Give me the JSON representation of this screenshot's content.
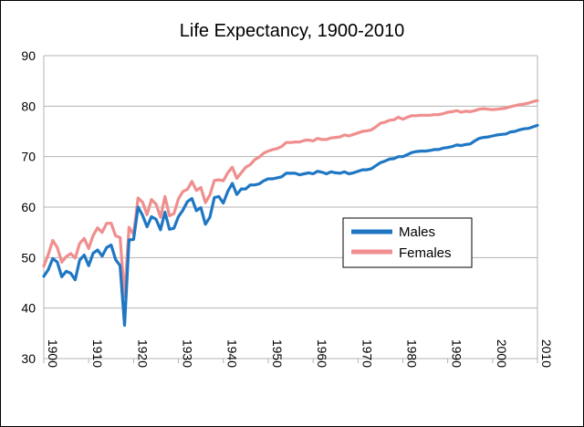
{
  "chart_data": {
    "type": "line",
    "title": "Life Expectancy, 1900-2010",
    "xlabel": "",
    "ylabel": "",
    "xlim": [
      1900,
      2010
    ],
    "ylim": [
      30,
      90
    ],
    "x_ticks": [
      1900,
      1910,
      1920,
      1930,
      1940,
      1950,
      1960,
      1970,
      1980,
      1990,
      2000,
      2010
    ],
    "y_ticks": [
      30,
      40,
      50,
      60,
      70,
      80,
      90
    ],
    "grid": "horizontal",
    "legend_position": "right-middle",
    "series": [
      {
        "name": "Males",
        "color": "#1f77c4",
        "points": [
          [
            1900,
            46.3
          ],
          [
            1901,
            47.6
          ],
          [
            1902,
            49.8
          ],
          [
            1903,
            49.1
          ],
          [
            1904,
            46.2
          ],
          [
            1905,
            47.3
          ],
          [
            1906,
            46.9
          ],
          [
            1907,
            45.6
          ],
          [
            1908,
            49.5
          ],
          [
            1909,
            50.5
          ],
          [
            1910,
            48.4
          ],
          [
            1911,
            50.9
          ],
          [
            1912,
            51.5
          ],
          [
            1913,
            50.3
          ],
          [
            1914,
            52.0
          ],
          [
            1915,
            52.5
          ],
          [
            1916,
            49.6
          ],
          [
            1917,
            48.4
          ],
          [
            1918,
            36.6
          ],
          [
            1919,
            53.5
          ],
          [
            1920,
            53.6
          ],
          [
            1921,
            60.0
          ],
          [
            1922,
            58.4
          ],
          [
            1923,
            56.1
          ],
          [
            1924,
            58.1
          ],
          [
            1925,
            57.6
          ],
          [
            1926,
            55.5
          ],
          [
            1927,
            59.0
          ],
          [
            1928,
            55.6
          ],
          [
            1929,
            55.8
          ],
          [
            1930,
            58.1
          ],
          [
            1931,
            59.4
          ],
          [
            1932,
            61.1
          ],
          [
            1933,
            61.7
          ],
          [
            1934,
            59.3
          ],
          [
            1935,
            59.9
          ],
          [
            1936,
            56.6
          ],
          [
            1937,
            58.0
          ],
          [
            1938,
            61.9
          ],
          [
            1939,
            62.1
          ],
          [
            1940,
            60.8
          ],
          [
            1941,
            63.1
          ],
          [
            1942,
            64.7
          ],
          [
            1943,
            62.5
          ],
          [
            1944,
            63.6
          ],
          [
            1945,
            63.6
          ],
          [
            1946,
            64.4
          ],
          [
            1947,
            64.4
          ],
          [
            1948,
            64.6
          ],
          [
            1949,
            65.2
          ],
          [
            1950,
            65.6
          ],
          [
            1951,
            65.6
          ],
          [
            1952,
            65.8
          ],
          [
            1953,
            66.0
          ],
          [
            1954,
            66.7
          ],
          [
            1955,
            66.7
          ],
          [
            1956,
            66.7
          ],
          [
            1957,
            66.4
          ],
          [
            1958,
            66.6
          ],
          [
            1959,
            66.8
          ],
          [
            1960,
            66.6
          ],
          [
            1961,
            67.1
          ],
          [
            1962,
            66.9
          ],
          [
            1963,
            66.6
          ],
          [
            1964,
            67.0
          ],
          [
            1965,
            66.8
          ],
          [
            1966,
            66.7
          ],
          [
            1967,
            67.0
          ],
          [
            1968,
            66.6
          ],
          [
            1969,
            66.8
          ],
          [
            1970,
            67.1
          ],
          [
            1971,
            67.4
          ],
          [
            1972,
            67.4
          ],
          [
            1973,
            67.6
          ],
          [
            1974,
            68.2
          ],
          [
            1975,
            68.8
          ],
          [
            1976,
            69.1
          ],
          [
            1977,
            69.5
          ],
          [
            1978,
            69.6
          ],
          [
            1979,
            70.0
          ],
          [
            1980,
            70.0
          ],
          [
            1981,
            70.4
          ],
          [
            1982,
            70.8
          ],
          [
            1983,
            71.0
          ],
          [
            1984,
            71.1
          ],
          [
            1985,
            71.1
          ],
          [
            1986,
            71.2
          ],
          [
            1987,
            71.4
          ],
          [
            1988,
            71.4
          ],
          [
            1989,
            71.7
          ],
          [
            1990,
            71.8
          ],
          [
            1991,
            72.0
          ],
          [
            1992,
            72.3
          ],
          [
            1993,
            72.2
          ],
          [
            1994,
            72.4
          ],
          [
            1995,
            72.5
          ],
          [
            1996,
            73.1
          ],
          [
            1997,
            73.6
          ],
          [
            1998,
            73.8
          ],
          [
            1999,
            73.9
          ],
          [
            2000,
            74.1
          ],
          [
            2001,
            74.3
          ],
          [
            2002,
            74.4
          ],
          [
            2003,
            74.5
          ],
          [
            2004,
            74.9
          ],
          [
            2005,
            75.0
          ],
          [
            2006,
            75.3
          ],
          [
            2007,
            75.5
          ],
          [
            2008,
            75.6
          ],
          [
            2009,
            75.9
          ],
          [
            2010,
            76.2
          ]
        ]
      },
      {
        "name": "Females",
        "color": "#f08e8e",
        "points": [
          [
            1900,
            48.3
          ],
          [
            1901,
            50.6
          ],
          [
            1902,
            53.4
          ],
          [
            1903,
            52.0
          ],
          [
            1904,
            49.1
          ],
          [
            1905,
            50.2
          ],
          [
            1906,
            50.8
          ],
          [
            1907,
            49.9
          ],
          [
            1908,
            52.8
          ],
          [
            1909,
            53.8
          ],
          [
            1910,
            51.8
          ],
          [
            1911,
            54.4
          ],
          [
            1912,
            55.9
          ],
          [
            1913,
            55.0
          ],
          [
            1914,
            56.8
          ],
          [
            1915,
            56.8
          ],
          [
            1916,
            54.3
          ],
          [
            1917,
            54.0
          ],
          [
            1918,
            42.2
          ],
          [
            1919,
            56.0
          ],
          [
            1920,
            54.6
          ],
          [
            1921,
            61.8
          ],
          [
            1922,
            61.0
          ],
          [
            1923,
            58.5
          ],
          [
            1924,
            61.5
          ],
          [
            1925,
            60.6
          ],
          [
            1926,
            58.0
          ],
          [
            1927,
            62.1
          ],
          [
            1928,
            58.3
          ],
          [
            1929,
            58.7
          ],
          [
            1930,
            61.6
          ],
          [
            1931,
            63.1
          ],
          [
            1932,
            63.5
          ],
          [
            1933,
            65.1
          ],
          [
            1934,
            63.3
          ],
          [
            1935,
            63.9
          ],
          [
            1936,
            60.9
          ],
          [
            1937,
            62.4
          ],
          [
            1938,
            65.3
          ],
          [
            1939,
            65.4
          ],
          [
            1940,
            65.2
          ],
          [
            1941,
            66.8
          ],
          [
            1942,
            67.9
          ],
          [
            1943,
            65.7
          ],
          [
            1944,
            66.8
          ],
          [
            1945,
            67.9
          ],
          [
            1946,
            68.4
          ],
          [
            1947,
            69.4
          ],
          [
            1948,
            69.9
          ],
          [
            1949,
            70.7
          ],
          [
            1950,
            71.1
          ],
          [
            1951,
            71.4
          ],
          [
            1952,
            71.6
          ],
          [
            1953,
            72.0
          ],
          [
            1954,
            72.8
          ],
          [
            1955,
            72.8
          ],
          [
            1956,
            72.9
          ],
          [
            1957,
            72.9
          ],
          [
            1958,
            73.2
          ],
          [
            1959,
            73.3
          ],
          [
            1960,
            73.1
          ],
          [
            1961,
            73.6
          ],
          [
            1962,
            73.4
          ],
          [
            1963,
            73.4
          ],
          [
            1964,
            73.7
          ],
          [
            1965,
            73.8
          ],
          [
            1966,
            73.9
          ],
          [
            1967,
            74.3
          ],
          [
            1968,
            74.1
          ],
          [
            1969,
            74.4
          ],
          [
            1970,
            74.7
          ],
          [
            1971,
            75.0
          ],
          [
            1972,
            75.1
          ],
          [
            1973,
            75.3
          ],
          [
            1974,
            75.9
          ],
          [
            1975,
            76.6
          ],
          [
            1976,
            76.8
          ],
          [
            1977,
            77.2
          ],
          [
            1978,
            77.3
          ],
          [
            1979,
            77.8
          ],
          [
            1980,
            77.4
          ],
          [
            1981,
            77.8
          ],
          [
            1982,
            78.1
          ],
          [
            1983,
            78.1
          ],
          [
            1984,
            78.2
          ],
          [
            1985,
            78.2
          ],
          [
            1986,
            78.2
          ],
          [
            1987,
            78.3
          ],
          [
            1988,
            78.3
          ],
          [
            1989,
            78.5
          ],
          [
            1990,
            78.8
          ],
          [
            1991,
            78.9
          ],
          [
            1992,
            79.1
          ],
          [
            1993,
            78.8
          ],
          [
            1994,
            79.0
          ],
          [
            1995,
            78.9
          ],
          [
            1996,
            79.1
          ],
          [
            1997,
            79.4
          ],
          [
            1998,
            79.5
          ],
          [
            1999,
            79.4
          ],
          [
            2000,
            79.3
          ],
          [
            2001,
            79.4
          ],
          [
            2002,
            79.5
          ],
          [
            2003,
            79.6
          ],
          [
            2004,
            79.9
          ],
          [
            2005,
            80.1
          ],
          [
            2006,
            80.3
          ],
          [
            2007,
            80.4
          ],
          [
            2008,
            80.6
          ],
          [
            2009,
            80.9
          ],
          [
            2010,
            81.1
          ]
        ]
      }
    ]
  }
}
